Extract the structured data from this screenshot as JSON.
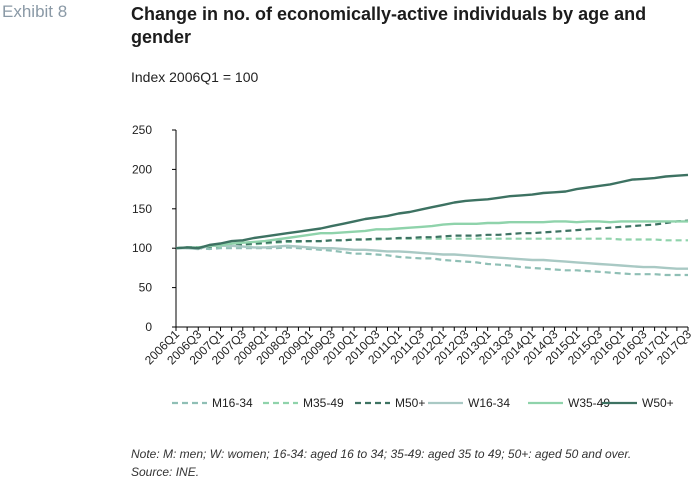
{
  "exhibit_label": "Exhibit 8",
  "title": "Change in no. of economically-active individuals by age and gender",
  "subtitle": "Index 2006Q1 = 100",
  "note": "Note: M: men; W: women; 16-34: aged 16 to 34; 35-49: aged 35 to 49; 50+: aged 50 and over.",
  "source": "Source: INE.",
  "chart_data": {
    "type": "line",
    "ylim": [
      0,
      250
    ],
    "yticks": [
      0,
      50,
      100,
      150,
      200,
      250
    ],
    "x": [
      "2006Q1",
      "2006Q2",
      "2006Q3",
      "2006Q4",
      "2007Q1",
      "2007Q2",
      "2007Q3",
      "2007Q4",
      "2008Q1",
      "2008Q2",
      "2008Q3",
      "2008Q4",
      "2009Q1",
      "2009Q2",
      "2009Q3",
      "2009Q4",
      "2010Q1",
      "2010Q2",
      "2010Q3",
      "2010Q4",
      "2011Q1",
      "2011Q2",
      "2011Q3",
      "2011Q4",
      "2012Q1",
      "2012Q2",
      "2012Q3",
      "2012Q4",
      "2013Q1",
      "2013Q2",
      "2013Q3",
      "2013Q4",
      "2014Q1",
      "2014Q2",
      "2014Q3",
      "2014Q4",
      "2015Q1",
      "2015Q2",
      "2015Q3",
      "2015Q4",
      "2016Q1",
      "2016Q2",
      "2016Q3",
      "2016Q4",
      "2017Q1",
      "2017Q2",
      "2017Q3"
    ],
    "xtick_labels": [
      "2006Q1",
      "2006Q3",
      "2007Q1",
      "2007Q3",
      "2008Q1",
      "2008Q3",
      "2009Q1",
      "2009Q3",
      "2010Q1",
      "2010Q3",
      "2011Q1",
      "2011Q3",
      "2012Q1",
      "2012Q3",
      "2013Q1",
      "2013Q3",
      "2014Q1",
      "2014Q3",
      "2015Q1",
      "2015Q3",
      "2016Q1",
      "2016Q3",
      "2017Q1",
      "2017Q3"
    ],
    "grid": false,
    "legend_position": "bottom",
    "series": [
      {
        "name": "M16-34",
        "color": "#8fbfb5",
        "dash": "dashed",
        "values": [
          100,
          100,
          100,
          99,
          100,
          100,
          100,
          100,
          100,
          100,
          101,
          100,
          99,
          98,
          97,
          95,
          93,
          93,
          92,
          91,
          89,
          88,
          87,
          87,
          85,
          84,
          83,
          82,
          80,
          79,
          78,
          76,
          75,
          74,
          73,
          72,
          72,
          71,
          70,
          69,
          68,
          67,
          67,
          67,
          66,
          66,
          66
        ]
      },
      {
        "name": "M35-49",
        "color": "#8fd3ab",
        "dash": "dashed",
        "values": [
          100,
          101,
          101,
          102,
          102,
          103,
          104,
          105,
          106,
          107,
          108,
          108,
          109,
          109,
          110,
          110,
          111,
          111,
          111,
          112,
          112,
          112,
          112,
          112,
          112,
          112,
          112,
          112,
          112,
          112,
          112,
          112,
          112,
          112,
          112,
          112,
          112,
          112,
          112,
          112,
          111,
          111,
          111,
          111,
          110,
          110,
          110
        ]
      },
      {
        "name": "M50+",
        "color": "#3d7262",
        "dash": "dashed",
        "values": [
          100,
          101,
          101,
          102,
          103,
          104,
          105,
          106,
          107,
          108,
          109,
          109,
          109,
          109,
          110,
          110,
          111,
          111,
          112,
          112,
          113,
          113,
          114,
          114,
          115,
          116,
          116,
          116,
          117,
          117,
          118,
          119,
          119,
          120,
          121,
          122,
          123,
          124,
          125,
          126,
          127,
          128,
          129,
          130,
          132,
          134,
          135
        ]
      },
      {
        "name": "W16-34",
        "color": "#a9c9c4",
        "dash": "solid",
        "values": [
          100,
          100,
          99,
          103,
          103,
          103,
          102,
          101,
          101,
          102,
          103,
          102,
          101,
          100,
          100,
          99,
          98,
          98,
          97,
          96,
          96,
          95,
          94,
          93,
          92,
          92,
          91,
          90,
          89,
          88,
          87,
          86,
          85,
          85,
          84,
          83,
          82,
          81,
          80,
          79,
          78,
          77,
          76,
          76,
          75,
          74,
          74
        ]
      },
      {
        "name": "W35-49",
        "color": "#8fd3ab",
        "dash": "solid",
        "values": [
          100,
          101,
          101,
          103,
          104,
          106,
          107,
          108,
          109,
          111,
          113,
          115,
          117,
          119,
          119,
          120,
          121,
          122,
          124,
          124,
          125,
          126,
          127,
          128,
          130,
          131,
          131,
          131,
          132,
          132,
          133,
          133,
          133,
          133,
          134,
          134,
          133,
          134,
          134,
          133,
          134,
          134,
          134,
          134,
          134,
          134,
          134
        ]
      },
      {
        "name": "W50+",
        "color": "#3d7262",
        "dash": "solid",
        "values": [
          100,
          101,
          100,
          104,
          106,
          109,
          110,
          113,
          115,
          117,
          119,
          121,
          123,
          125,
          128,
          131,
          134,
          137,
          139,
          141,
          144,
          146,
          149,
          152,
          155,
          158,
          160,
          161,
          162,
          164,
          166,
          167,
          168,
          170,
          171,
          172,
          175,
          177,
          179,
          181,
          184,
          187,
          188,
          189,
          191,
          192,
          193
        ]
      }
    ]
  }
}
